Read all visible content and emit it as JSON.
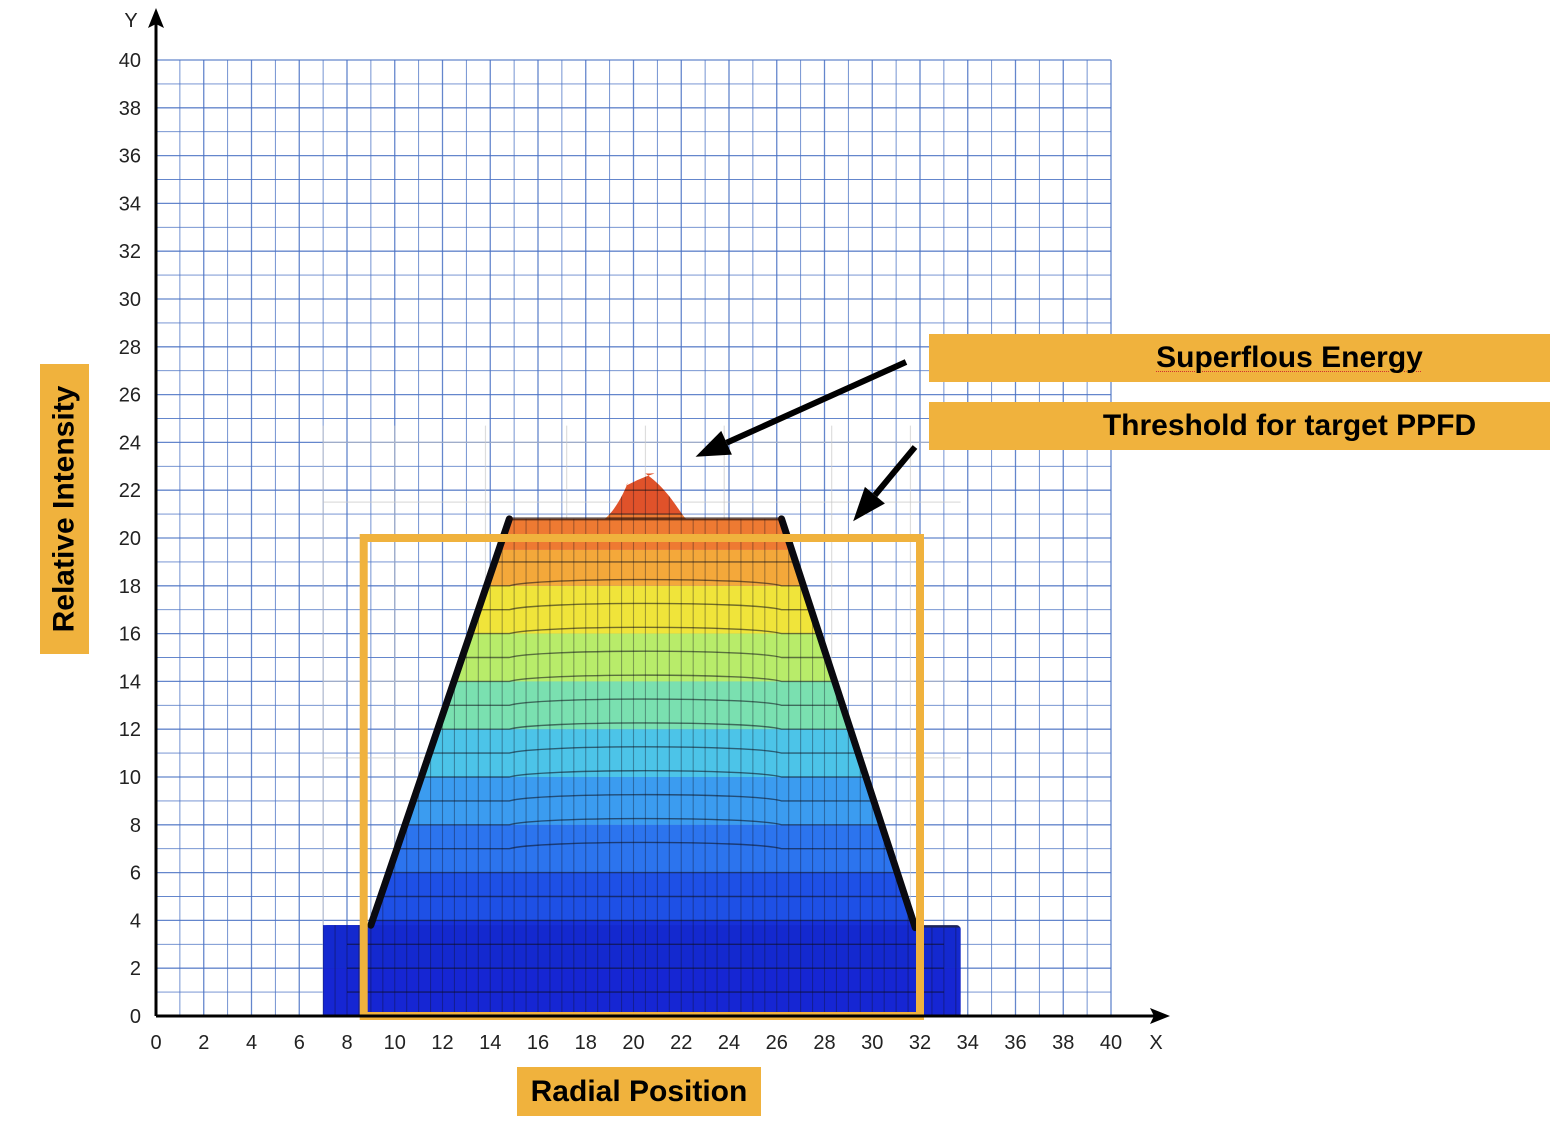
{
  "chart_data": {
    "type": "area",
    "xlabel": "Radial Position",
    "ylabel": "Relative Intensity",
    "x_axis_letter": "X",
    "y_axis_letter": "Y",
    "xlim": [
      0,
      40
    ],
    "ylim": [
      0,
      40
    ],
    "x_ticks": [
      0,
      2,
      4,
      6,
      8,
      10,
      12,
      14,
      16,
      18,
      20,
      22,
      24,
      26,
      28,
      30,
      32,
      34,
      36,
      38,
      40
    ],
    "y_ticks": [
      0,
      2,
      4,
      6,
      8,
      10,
      12,
      14,
      16,
      18,
      20,
      22,
      24,
      26,
      28,
      30,
      32,
      34,
      36,
      38,
      40
    ],
    "grid": true,
    "profile": {
      "x": [
        7,
        7,
        9,
        14.8,
        18.8,
        19.7,
        20.5,
        21.3,
        22.2,
        26.2,
        31.8,
        33.7,
        33.7
      ],
      "y": [
        0,
        3.8,
        3.8,
        20.8,
        20.8,
        22.2,
        22.7,
        22.3,
        20.8,
        20.8,
        3.7,
        3.7,
        0
      ]
    },
    "color_bands": [
      {
        "from": 0,
        "to": 2,
        "color": "#1a28e0"
      },
      {
        "from": 2,
        "to": 4,
        "color": "#1630d8"
      },
      {
        "from": 4,
        "to": 6,
        "color": "#1e50e6"
      },
      {
        "from": 6,
        "to": 8,
        "color": "#2c74ee"
      },
      {
        "from": 8,
        "to": 10,
        "color": "#3b9cf0"
      },
      {
        "from": 10,
        "to": 12,
        "color": "#4cc4e8"
      },
      {
        "from": 12,
        "to": 14,
        "color": "#7ae0b0"
      },
      {
        "from": 14,
        "to": 16,
        "color": "#b8ec6a"
      },
      {
        "from": 16,
        "to": 18,
        "color": "#f0e43a"
      },
      {
        "from": 18,
        "to": 19.5,
        "color": "#f4a83a"
      },
      {
        "from": 19.5,
        "to": 21,
        "color": "#ee7a32"
      },
      {
        "from": 21,
        "to": 23,
        "color": "#e0522a"
      }
    ],
    "threshold_box": {
      "x": [
        8.7,
        32
      ],
      "y": [
        0,
        20
      ]
    },
    "annotations": [
      {
        "text": "Superflous Energy",
        "arrow_to": [
          22.6,
          23.4
        ]
      },
      {
        "text": "Threshold for target PPFD",
        "arrow_to": [
          29.2,
          20.7
        ]
      }
    ],
    "colors": {
      "grid": "#4a72c4",
      "label_box": "#f0b23d",
      "threshold_box": "#f0b23d",
      "base_block": "#1c2458"
    }
  }
}
